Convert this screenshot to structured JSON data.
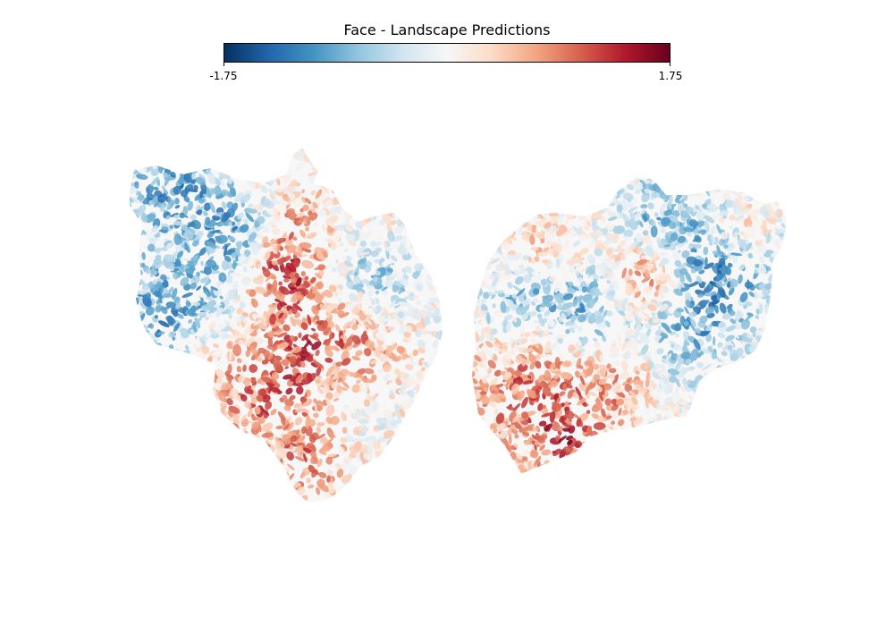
{
  "chart_data": {
    "type": "heatmap",
    "title": "Face - Landscape Predictions",
    "colormap": "RdBu_r",
    "colorbar": {
      "vmin": -1.75,
      "vmax": 1.75,
      "min_label": "-1.75",
      "max_label": "1.75",
      "placement": "top",
      "stops": [
        "#053061",
        "#2166ac",
        "#4393c3",
        "#92c5de",
        "#d1e5f0",
        "#f7f7f7",
        "#fddbc7",
        "#f4a582",
        "#d6604d",
        "#b2182b",
        "#67001f"
      ]
    },
    "panels": [
      {
        "name": "left hemisphere flatmap"
      },
      {
        "name": "right hemisphere flatmap"
      }
    ],
    "grid": false
  }
}
